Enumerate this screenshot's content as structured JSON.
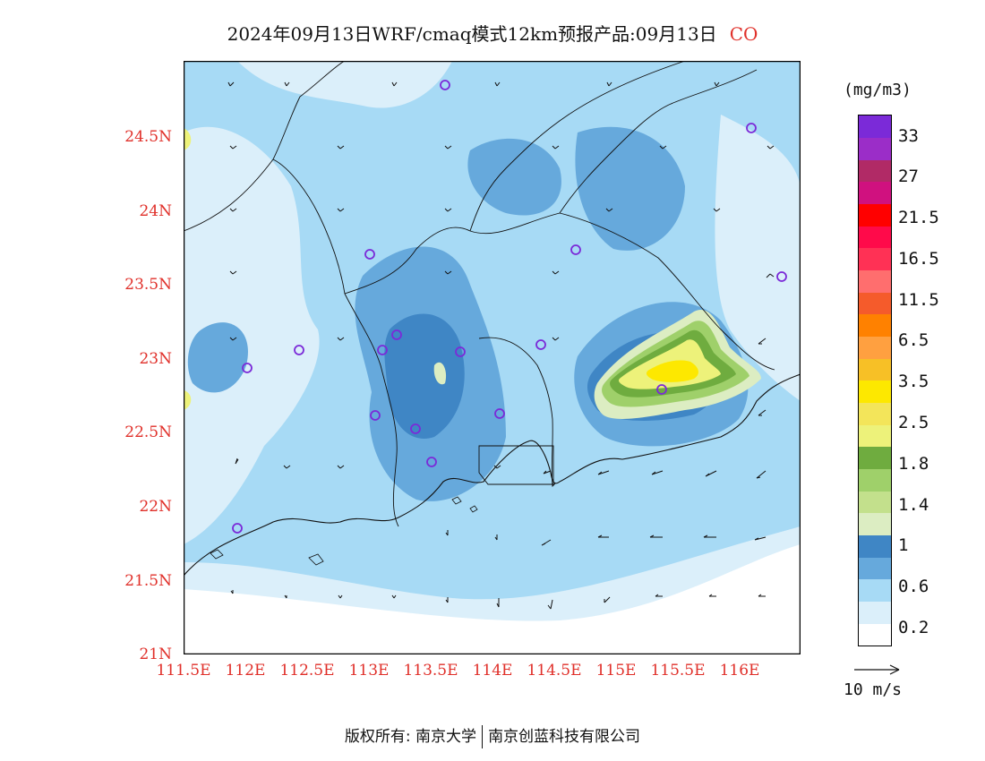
{
  "title": {
    "text": "2024年09月13日WRF/cmaq模式12km预报产品:09月13日",
    "pollutant": "CO"
  },
  "axes": {
    "x_ticks": [
      "111.5E",
      "112E",
      "112.5E",
      "113E",
      "113.5E",
      "114E",
      "114.5E",
      "115E",
      "115.5E",
      "116E"
    ],
    "y_ticks": [
      "24.5N",
      "24N",
      "23.5N",
      "23N",
      "22.5N",
      "22N",
      "21.5N",
      "21N"
    ]
  },
  "colorbar": {
    "unit": "(mg/m3)",
    "labels": [
      "33",
      "27",
      "21.5",
      "16.5",
      "11.5",
      "6.5",
      "3.5",
      "2.5",
      "1.8",
      "1.4",
      "1",
      "0.6",
      "0.2"
    ],
    "colors_bottom_to_top": [
      "#ffffff",
      "#dbeffa",
      "#a7daf5",
      "#66a9dc",
      "#3f86c5",
      "#dcedc2",
      "#c3e08c",
      "#9fd06a",
      "#6fac3f",
      "#edf27a",
      "#f3e55a",
      "#fde800",
      "#f7c026",
      "#ffa040",
      "#ff8100",
      "#f55b2b",
      "#ff6e6e",
      "#ff3155",
      "#ff0a4a",
      "#ff0000",
      "#d0117f",
      "#b12a66",
      "#9b2dc8",
      "#7b2ad8"
    ]
  },
  "wind_reference": {
    "label": "10 m/s"
  },
  "stations_label": "monitoring-stations",
  "footer": {
    "left": "版权所有: 南京大学",
    "right": "南京创蓝科技有限公司"
  }
}
